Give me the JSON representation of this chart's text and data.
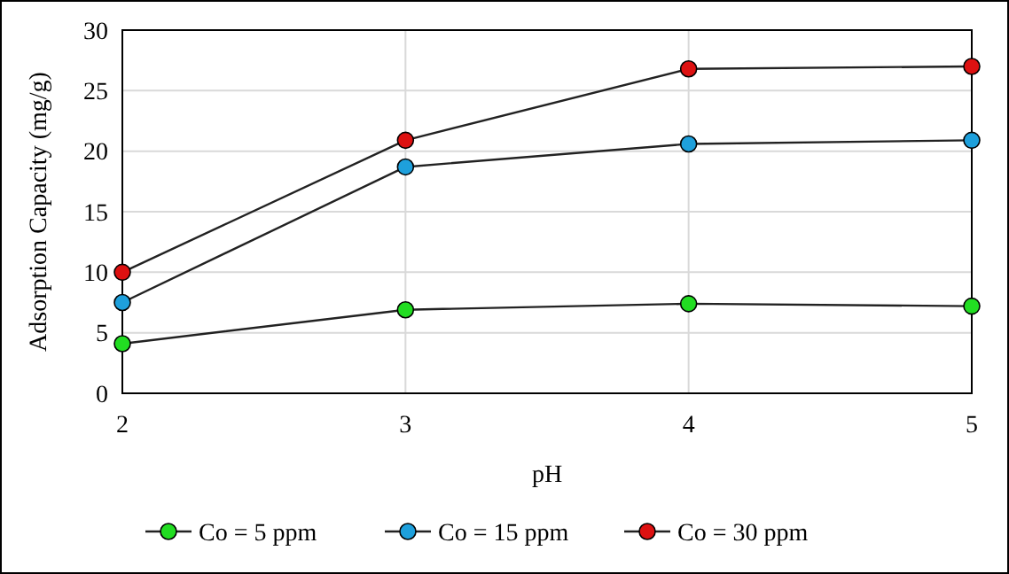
{
  "chart_data": {
    "type": "line",
    "xlabel": "pH",
    "ylabel": "Adsorption Capacity (mg/g)",
    "x": [
      2,
      3,
      4,
      5
    ],
    "xlim": [
      2,
      5
    ],
    "xticks": [
      2,
      3,
      4,
      5
    ],
    "ylim": [
      0,
      30
    ],
    "yticks": [
      0,
      5,
      10,
      15,
      20,
      25,
      30
    ],
    "grid": true,
    "legend": "bottom",
    "marker": "circle",
    "line_style": "solid",
    "series": [
      {
        "name": "Co = 5 ppm",
        "color": "#22dd22",
        "values": [
          4.1,
          6.9,
          7.4,
          7.2
        ]
      },
      {
        "name": "Co = 15 ppm",
        "color": "#1ea0dc",
        "values": [
          7.5,
          18.7,
          20.6,
          20.9
        ]
      },
      {
        "name": "Co = 30 ppm",
        "color": "#dd1111",
        "values": [
          10.0,
          20.9,
          26.8,
          27.0
        ]
      }
    ]
  }
}
